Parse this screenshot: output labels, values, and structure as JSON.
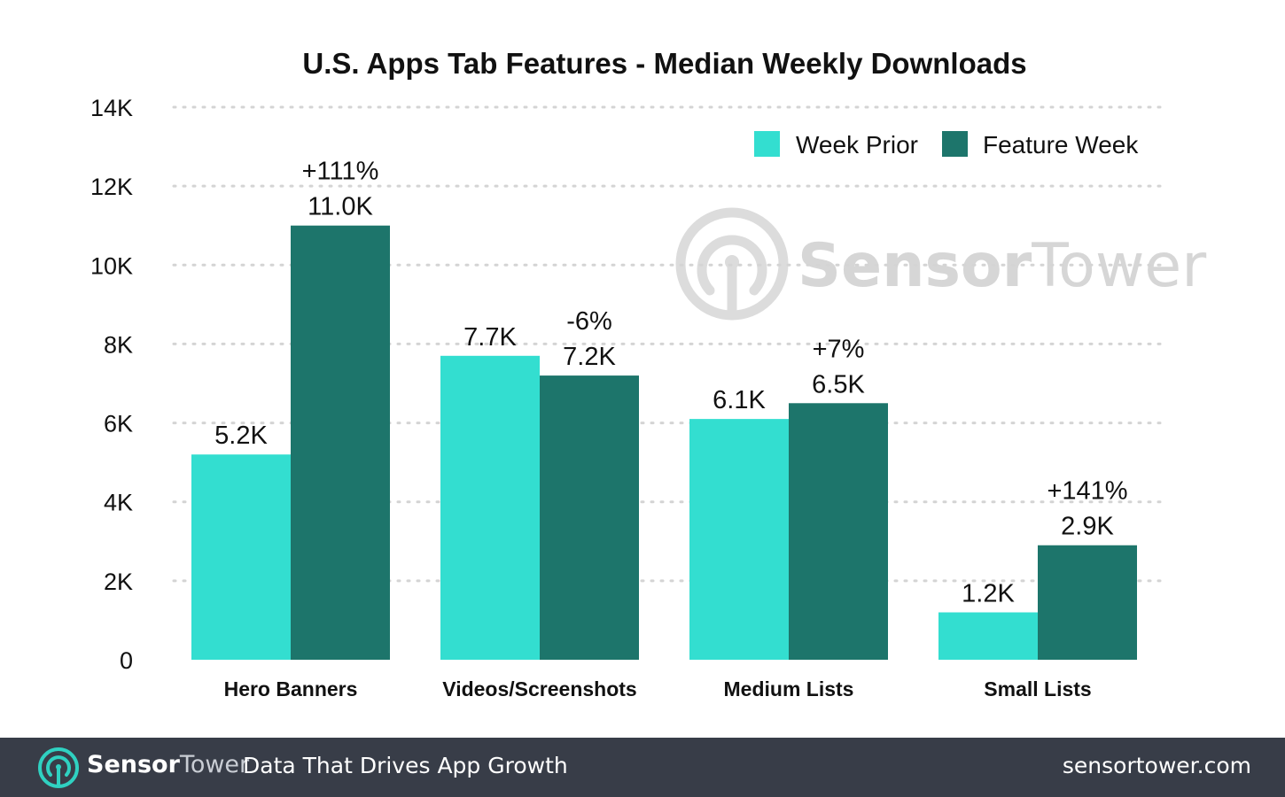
{
  "chart_data": {
    "type": "bar",
    "title": "U.S. Apps Tab Features - Median Weekly Downloads",
    "xlabel": "",
    "ylabel": "",
    "ylim": [
      0,
      14000
    ],
    "yticks": [
      0,
      2000,
      4000,
      6000,
      8000,
      10000,
      12000,
      14000
    ],
    "ytick_labels": [
      "0",
      "2K",
      "4K",
      "6K",
      "8K",
      "10K",
      "12K",
      "14K"
    ],
    "categories": [
      "Hero Banners",
      "Videos/Screenshots",
      "Medium Lists",
      "Small Lists"
    ],
    "series": [
      {
        "name": "Week Prior",
        "color": "#33ded0",
        "values": [
          5200,
          7700,
          6100,
          1200
        ],
        "labels": [
          "5.2K",
          "7.7K",
          "6.1K",
          "1.2K"
        ]
      },
      {
        "name": "Feature Week",
        "color": "#1d756b",
        "values": [
          11000,
          7200,
          6500,
          2900
        ],
        "labels": [
          "11.0K",
          "7.2K",
          "6.5K",
          "2.9K"
        ],
        "change_labels": [
          "+111%",
          "-6%",
          "+7%",
          "+141%"
        ]
      }
    ],
    "grid": true,
    "legend": "top-right"
  },
  "watermark": {
    "brand_part1": "Sensor",
    "brand_part2": "Tower",
    "icon": "sensortower-logo-icon"
  },
  "footer": {
    "brand_part1": "Sensor",
    "brand_part2": "Tower",
    "tagline": "Data That Drives App Growth",
    "url": "sensortower.com",
    "background": "#383d48",
    "icon": "sensortower-logo-icon"
  }
}
